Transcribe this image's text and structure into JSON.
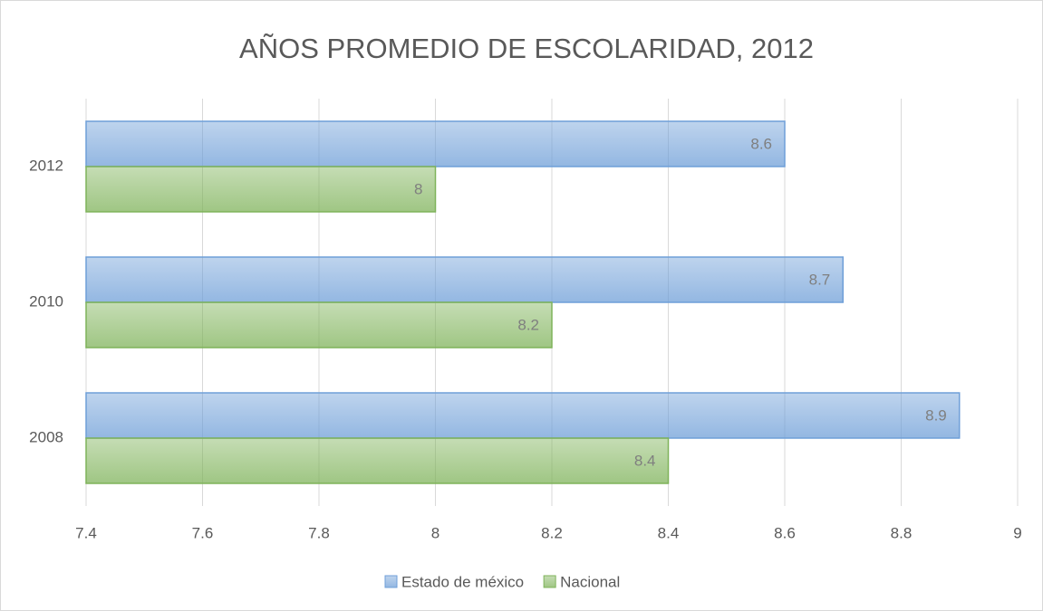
{
  "chart_data": {
    "type": "hbar",
    "title": "AÑOS PROMEDIO DE ESCOLARIDAD, 2012",
    "categories": [
      "2012",
      "2010",
      "2008"
    ],
    "series": [
      {
        "name": "Estado de méxico",
        "color": "#6f9fd8",
        "values": [
          8.6,
          8.7,
          8.9
        ]
      },
      {
        "name": "Nacional",
        "color": "#7fb35a",
        "values": [
          8,
          8.2,
          8.4
        ]
      }
    ],
    "xlim": [
      7.4,
      9
    ],
    "xticks": [
      7.4,
      7.6,
      7.8,
      8,
      8.2,
      8.4,
      8.6,
      8.8,
      9
    ],
    "grid": true,
    "legend": "bottom"
  }
}
